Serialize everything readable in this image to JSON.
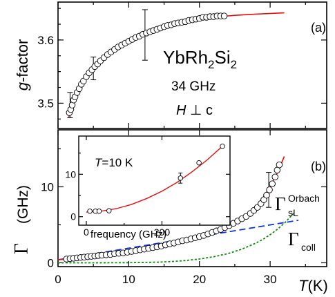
{
  "chart_data": [
    {
      "type": "scatter",
      "panel_label": "(a)",
      "material": [
        "YbRh",
        "2",
        "Si",
        "2"
      ],
      "frequency_text": "34 GHz",
      "field_text": [
        "H",
        " ⊥ c"
      ],
      "ylabel": [
        "g",
        "-factor"
      ],
      "xlim": [
        0,
        38
      ],
      "ylim": [
        3.46,
        3.66
      ],
      "yticks": [
        3.5,
        3.6
      ],
      "ytick_labels": [
        "3.5",
        "3.6"
      ],
      "points": {
        "x": [
          1.6,
          1.8,
          2.0,
          2.2,
          2.4,
          2.7,
          3.0,
          3.3,
          3.6,
          4.0,
          4.4,
          4.8,
          5.2,
          5.6,
          6.0,
          6.5,
          7.0,
          7.5,
          8.0,
          8.5,
          9.0,
          9.5,
          10.0,
          10.5,
          11.0,
          11.5,
          12.0,
          12.5,
          13.0,
          13.5,
          14.0,
          14.5,
          15.0,
          15.5,
          16.0,
          16.5,
          17.0,
          17.5,
          18.0,
          18.5,
          19.0,
          19.5,
          20.0,
          20.5,
          21.0,
          21.5,
          22.0,
          22.5,
          23.0,
          23.5
        ],
        "y": [
          3.485,
          3.49,
          3.497,
          3.505,
          3.51,
          3.517,
          3.523,
          3.53,
          3.535,
          3.542,
          3.548,
          3.553,
          3.558,
          3.562,
          3.567,
          3.572,
          3.577,
          3.581,
          3.585,
          3.589,
          3.592,
          3.595,
          3.598,
          3.601,
          3.604,
          3.606,
          3.609,
          3.611,
          3.613,
          3.615,
          3.617,
          3.619,
          3.621,
          3.623,
          3.624,
          3.626,
          3.627,
          3.628,
          3.629,
          3.631,
          3.632,
          3.633,
          3.634,
          3.636,
          3.636,
          3.637,
          3.637,
          3.638,
          3.638,
          3.638
        ]
      },
      "error_bars": [
        {
          "x": 1.7,
          "y": 3.497,
          "err": 0.02
        },
        {
          "x": 5.0,
          "y": 3.555,
          "err": 0.018
        },
        {
          "x": 12.3,
          "y": 3.608,
          "err": 0.04
        }
      ],
      "fit": {
        "x": [
          1.5,
          2,
          3,
          4,
          5,
          6,
          7,
          8,
          10,
          12,
          14,
          16,
          18,
          20,
          22,
          25,
          28,
          32
        ],
        "y": [
          3.478,
          3.492,
          3.522,
          3.543,
          3.558,
          3.569,
          3.579,
          3.586,
          3.599,
          3.609,
          3.617,
          3.624,
          3.629,
          3.633,
          3.636,
          3.639,
          3.641,
          3.643
        ]
      }
    },
    {
      "type": "scatter",
      "panel_label": "(b)",
      "xlabel": [
        "T",
        "(K)"
      ],
      "ylabel": [
        "Γ",
        "(GHz)"
      ],
      "xlim": [
        0,
        38
      ],
      "ylim": [
        -0.5,
        17.5
      ],
      "xticks": [
        0,
        10,
        20,
        30
      ],
      "xtick_labels": [
        "0",
        "10",
        "20",
        "30"
      ],
      "yticks": [
        0,
        10
      ],
      "ytick_labels": [
        "0",
        "10"
      ],
      "points": {
        "x": [
          1.2,
          1.7,
          2.2,
          2.7,
          3.2,
          3.7,
          4.2,
          4.7,
          5.2,
          5.7,
          6.2,
          6.8,
          7.4,
          8.0,
          8.6,
          9.2,
          9.8,
          10.4,
          11.0,
          11.6,
          12.2,
          12.8,
          13.4,
          14.0,
          14.6,
          15.2,
          15.8,
          16.4,
          17.0,
          17.6,
          18.2,
          18.8,
          19.4,
          20.0,
          20.6,
          21.2,
          21.8,
          22.4,
          23.0,
          23.6,
          24.2,
          24.8,
          25.4,
          26.0,
          26.6,
          27.2,
          27.7,
          28.2,
          28.7,
          29.1,
          29.5,
          29.9,
          30.3,
          30.7,
          31.0,
          31.3
        ],
        "y": [
          0.5,
          0.55,
          0.6,
          0.65,
          0.7,
          0.75,
          0.8,
          0.85,
          0.9,
          0.95,
          1.0,
          1.05,
          1.1,
          1.2,
          1.25,
          1.3,
          1.4,
          1.5,
          1.6,
          1.7,
          1.8,
          1.9,
          2.0,
          2.1,
          2.2,
          2.35,
          2.5,
          2.6,
          2.75,
          2.9,
          3.0,
          3.15,
          3.3,
          3.45,
          3.6,
          3.8,
          4.0,
          4.2,
          4.4,
          4.65,
          4.9,
          5.2,
          5.5,
          5.8,
          6.1,
          6.5,
          6.9,
          7.3,
          7.8,
          8.3,
          8.9,
          9.6,
          10.4,
          11.3,
          12.2,
          12.9
        ]
      },
      "error_bars": [
        {
          "x": 29.8,
          "y": 9.6,
          "err": 2.3
        }
      ],
      "fit": {
        "x": [
          0,
          2,
          4,
          6,
          8,
          10,
          12,
          14,
          16,
          18,
          20,
          22,
          24,
          26,
          27,
          28,
          29,
          30,
          31,
          32
        ],
        "y": [
          0.4,
          0.55,
          0.7,
          0.85,
          1.05,
          1.3,
          1.6,
          1.95,
          2.35,
          2.8,
          3.3,
          3.9,
          4.6,
          5.6,
          6.4,
          7.4,
          8.6,
          10.0,
          11.8,
          14.0
        ]
      },
      "collision_line": {
        "label": [
          "Γ",
          "coll"
        ],
        "x": [
          0,
          34
        ],
        "y": [
          0.4,
          5.6
        ]
      },
      "orbach_curve": {
        "label": [
          "Γ",
          "sL",
          "Orbach"
        ],
        "x": [
          0,
          5,
          10,
          14,
          16,
          18,
          20,
          22,
          24,
          26,
          28,
          29,
          30,
          31,
          32,
          33.3
        ],
        "y": [
          0,
          0,
          0.02,
          0.08,
          0.16,
          0.3,
          0.5,
          0.8,
          1.2,
          1.8,
          2.6,
          3.1,
          3.7,
          4.4,
          5.2,
          6.5
        ]
      },
      "inset": {
        "type": "scatter",
        "annotation": [
          "T",
          "=10 K"
        ],
        "xlabel": "frequency (GHz)",
        "xlim": [
          -20,
          380
        ],
        "ylim": [
          -2,
          19
        ],
        "xticks": [
          0,
          200
        ],
        "xtick_labels": [
          "0",
          "200"
        ],
        "yticks": [
          0,
          10
        ],
        "ytick_labels": [
          "0",
          "10"
        ],
        "points": {
          "x": [
            9.4,
            24,
            34,
            60,
            249,
            298,
            360
          ],
          "y": [
            1.3,
            1.3,
            1.3,
            1.4,
            9.1,
            12.7,
            16.6
          ]
        },
        "error_bars": [
          {
            "x": 249,
            "y": 9.1,
            "err": 1.2
          }
        ],
        "fit": {
          "x": [
            0,
            40,
            80,
            120,
            160,
            200,
            240,
            280,
            320,
            360
          ],
          "y": [
            1.1,
            1.3,
            1.9,
            2.9,
            4.3,
            6.0,
            8.1,
            10.6,
            13.4,
            16.6
          ]
        }
      }
    }
  ]
}
